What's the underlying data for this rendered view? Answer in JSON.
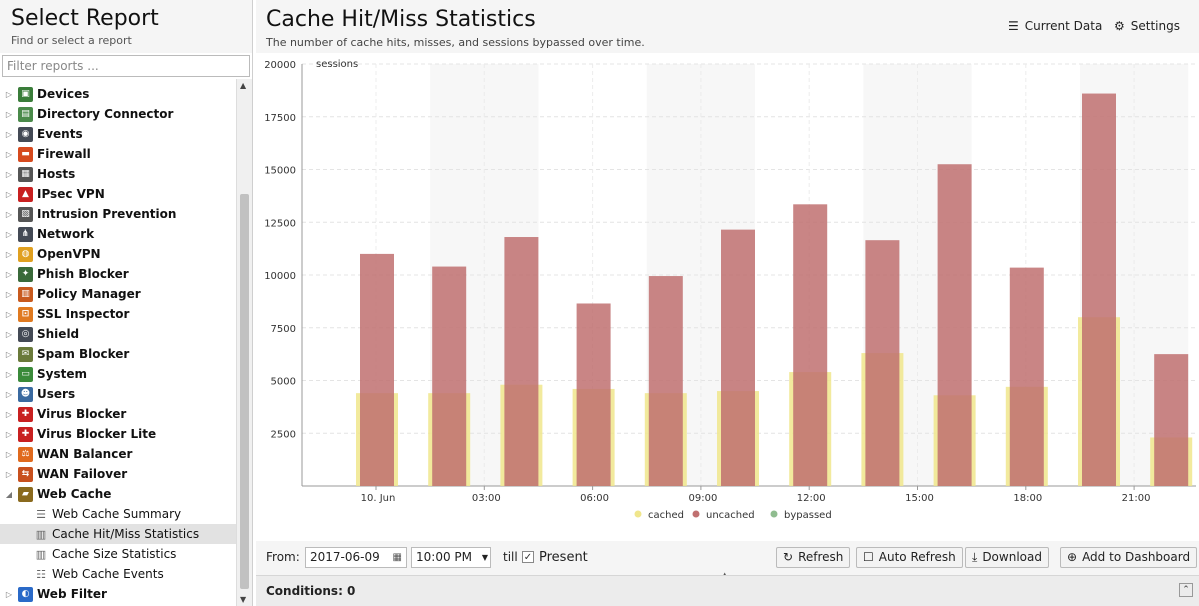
{
  "left": {
    "title": "Select Report",
    "subtitle": "Find or select a report",
    "filter_placeholder": "Filter reports ...",
    "items": [
      {
        "label": "Devices",
        "icon": "devices-icon",
        "color": "#3a7d3a",
        "glyph": "▣"
      },
      {
        "label": "Directory Connector",
        "icon": "directory-connector-icon",
        "color": "#4a8a4a",
        "glyph": "▤"
      },
      {
        "label": "Events",
        "icon": "events-icon",
        "color": "#444a55",
        "glyph": "◉"
      },
      {
        "label": "Firewall",
        "icon": "firewall-icon",
        "color": "#d64a1e",
        "glyph": "▬"
      },
      {
        "label": "Hosts",
        "icon": "hosts-icon",
        "color": "#555555",
        "glyph": "▦"
      },
      {
        "label": "IPsec VPN",
        "icon": "ipsec-vpn-icon",
        "color": "#c82020",
        "glyph": "▲"
      },
      {
        "label": "Intrusion Prevention",
        "icon": "intrusion-prevention-icon",
        "color": "#555555",
        "glyph": "▧"
      },
      {
        "label": "Network",
        "icon": "network-icon",
        "color": "#444a55",
        "glyph": "⋔"
      },
      {
        "label": "OpenVPN",
        "icon": "openvpn-icon",
        "color": "#e0a020",
        "glyph": "◍"
      },
      {
        "label": "Phish Blocker",
        "icon": "phish-blocker-icon",
        "color": "#3a6a3a",
        "glyph": "✦"
      },
      {
        "label": "Policy Manager",
        "icon": "policy-manager-icon",
        "color": "#c85a1e",
        "glyph": "▥"
      },
      {
        "label": "SSL Inspector",
        "icon": "ssl-inspector-icon",
        "color": "#e07a20",
        "glyph": "⊡"
      },
      {
        "label": "Shield",
        "icon": "shield-icon",
        "color": "#444a55",
        "glyph": "◎"
      },
      {
        "label": "Spam Blocker",
        "icon": "spam-blocker-icon",
        "color": "#6a7a3a",
        "glyph": "✉"
      },
      {
        "label": "System",
        "icon": "system-icon",
        "color": "#3a8a3a",
        "glyph": "▭"
      },
      {
        "label": "Users",
        "icon": "users-icon",
        "color": "#3a6aa0",
        "glyph": "☻"
      },
      {
        "label": "Virus Blocker",
        "icon": "virus-blocker-icon",
        "color": "#c82020",
        "glyph": "✚"
      },
      {
        "label": "Virus Blocker Lite",
        "icon": "virus-blocker-lite-icon",
        "color": "#c82020",
        "glyph": "✚"
      },
      {
        "label": "WAN Balancer",
        "icon": "wan-balancer-icon",
        "color": "#e06a1e",
        "glyph": "⚖"
      },
      {
        "label": "WAN Failover",
        "icon": "wan-failover-icon",
        "color": "#c8501e",
        "glyph": "⇆"
      },
      {
        "label": "Web Cache",
        "icon": "web-cache-icon",
        "color": "#8a6a1e",
        "glyph": "▰"
      }
    ],
    "children": [
      {
        "label": "Web Cache Summary",
        "icon": "list-icon",
        "glyph": "☰"
      },
      {
        "label": "Cache Hit/Miss Statistics",
        "icon": "bar-chart-icon",
        "glyph": "▥"
      },
      {
        "label": "Cache Size Statistics",
        "icon": "bar-chart-icon",
        "glyph": "▥"
      },
      {
        "label": "Web Cache Events",
        "icon": "list-icon",
        "glyph": "☷"
      }
    ],
    "last_item": {
      "label": "Web Filter",
      "icon": "web-filter-icon",
      "color": "#2a6ac8",
      "glyph": "◐"
    }
  },
  "report": {
    "title": "Cache Hit/Miss Statistics",
    "description": "The number of cache hits, misses, and sessions bypassed over time.",
    "current_data_label": "Current Data",
    "settings_label": "Settings"
  },
  "bottom": {
    "from_label": "From:",
    "date_value": "2017-06-09",
    "time_value": "10:00 PM",
    "till_label": "till",
    "present_label": "Present",
    "refresh_label": "Refresh",
    "auto_refresh_label": "Auto Refresh",
    "download_label": "Download",
    "add_dashboard_label": "Add to Dashboard"
  },
  "conditions": {
    "label": "Conditions: 0"
  },
  "chart_data": {
    "type": "bar",
    "ylabel": "sessions",
    "ylim": [
      0,
      20000
    ],
    "yticks": [
      2500,
      5000,
      7500,
      10000,
      12500,
      15000,
      17500,
      20000
    ],
    "xtick_labels": [
      "10. Jun",
      "03:00",
      "06:00",
      "09:00",
      "12:00",
      "15:00",
      "18:00",
      "21:00"
    ],
    "colors": {
      "cached": "#f0e68c",
      "uncached": "#c07070",
      "bypassed": "#8fbc8f"
    },
    "stacked_overlay": true,
    "series": [
      {
        "name": "cached",
        "values": [
          4400,
          4400,
          4800,
          4600,
          4400,
          4500,
          5400,
          6300,
          4300,
          4700,
          8000,
          2300
        ]
      },
      {
        "name": "uncached",
        "values": [
          11000,
          10400,
          11800,
          8650,
          9950,
          12150,
          13350,
          11650,
          15250,
          10350,
          18600,
          6250
        ]
      },
      {
        "name": "bypassed",
        "values": [
          0,
          0,
          0,
          0,
          0,
          0,
          0,
          0,
          0,
          0,
          0,
          0
        ]
      }
    ],
    "legend": [
      "cached",
      "uncached",
      "bypassed"
    ],
    "legend_position": "bottom",
    "grid": true
  }
}
